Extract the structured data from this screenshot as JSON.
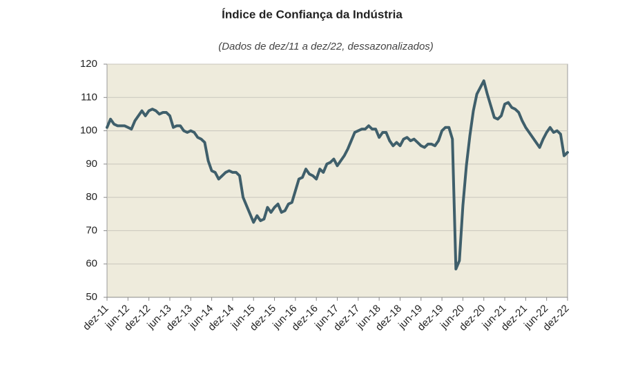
{
  "chart_data": {
    "type": "line",
    "title": "Índice de Confiança da Indústria",
    "subtitle": "(Dados de dez/11 a dez/22, dessazonalizados)",
    "categories": [
      "dez-11",
      null,
      null,
      null,
      null,
      null,
      "jun-12",
      null,
      null,
      null,
      null,
      null,
      "dez-12",
      null,
      null,
      null,
      null,
      null,
      "jun-13",
      null,
      null,
      null,
      null,
      null,
      "dez-13",
      null,
      null,
      null,
      null,
      null,
      "jun-14",
      null,
      null,
      null,
      null,
      null,
      "dez-14",
      null,
      null,
      null,
      null,
      null,
      "jun-15",
      null,
      null,
      null,
      null,
      null,
      "dez-15",
      null,
      null,
      null,
      null,
      null,
      "jun-16",
      null,
      null,
      null,
      null,
      null,
      "dez-16",
      null,
      null,
      null,
      null,
      null,
      "jun-17",
      null,
      null,
      null,
      null,
      null,
      "dez-17",
      null,
      null,
      null,
      null,
      null,
      "jun-18",
      null,
      null,
      null,
      null,
      null,
      "dez-18",
      null,
      null,
      null,
      null,
      null,
      "jun-19",
      null,
      null,
      null,
      null,
      null,
      "dez-19",
      null,
      null,
      null,
      null,
      null,
      "jun-20",
      null,
      null,
      null,
      null,
      null,
      "dez-20",
      null,
      null,
      null,
      null,
      null,
      "jun-21",
      null,
      null,
      null,
      null,
      null,
      "dez-21",
      null,
      null,
      null,
      null,
      null,
      "jun-22",
      null,
      null,
      null,
      null,
      null,
      "dez-22"
    ],
    "values": [
      101,
      103.5,
      102,
      101.5,
      101.5,
      101.5,
      101,
      100.5,
      103,
      104.5,
      106,
      104.5,
      106,
      106.5,
      106,
      105,
      105.5,
      105.5,
      104.5,
      101,
      101.5,
      101.5,
      100,
      99.5,
      100,
      99.5,
      98,
      97.5,
      96.5,
      91,
      88,
      87.5,
      85.5,
      86.5,
      87.5,
      88,
      87.5,
      87.5,
      86.5,
      80,
      77.5,
      75,
      72.5,
      74.5,
      73,
      73.5,
      77,
      75.5,
      77,
      78,
      75.5,
      76,
      78,
      78.5,
      82,
      85.5,
      86,
      88.5,
      87,
      86.5,
      85.5,
      88.5,
      87.5,
      90,
      90.5,
      91.5,
      89.5,
      91,
      92.5,
      94.5,
      97,
      99.5,
      100,
      100.5,
      100.5,
      101.5,
      100.5,
      100.5,
      98,
      99.5,
      99.5,
      97,
      95.5,
      96.5,
      95.5,
      97.5,
      98,
      97,
      97.5,
      96.5,
      95.5,
      95,
      96,
      96,
      95.5,
      97,
      100,
      101,
      101,
      97.5,
      58.5,
      61,
      77.5,
      89.5,
      98.5,
      106,
      111,
      113,
      115,
      111,
      107.5,
      104,
      103.5,
      104.5,
      108,
      108.5,
      107,
      106.5,
      105.5,
      103,
      101,
      99.5,
      98,
      96.5,
      95,
      97.5,
      99.5,
      101,
      99.5,
      100,
      99,
      92.5,
      93.5
    ],
    "color": "#3f5f6b",
    "ylim": [
      50,
      120
    ],
    "yticks": [
      50,
      60,
      70,
      80,
      90,
      100,
      110,
      120
    ],
    "grid": true
  }
}
